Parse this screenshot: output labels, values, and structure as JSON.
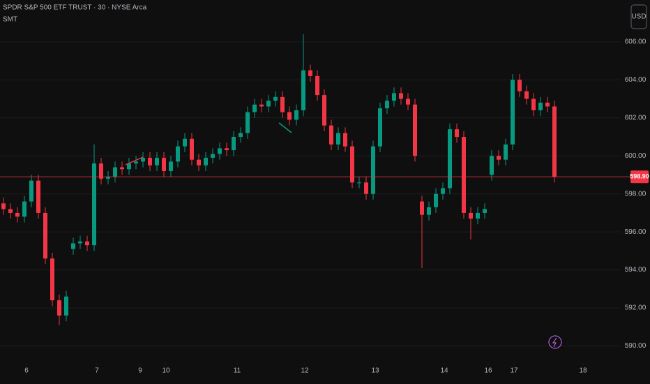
{
  "chart_data": {
    "type": "candlestick",
    "title": "SPDR S&P 500 ETF TRUST · 30 · NYSE Arca",
    "indicator": "SMT",
    "currency": "USD",
    "up_color": "#089981",
    "down_color": "#f23645",
    "grid": true,
    "x": [
      0,
      1,
      2,
      3,
      4,
      5,
      6,
      7,
      8,
      9,
      10,
      11,
      12,
      13,
      14,
      15,
      16,
      17,
      18,
      19,
      20,
      21,
      22,
      23,
      24,
      25,
      26,
      27,
      28,
      29,
      30,
      31,
      32,
      33,
      34,
      35,
      36,
      37,
      38,
      39,
      40,
      41,
      42,
      43,
      44,
      45,
      46,
      47,
      48,
      49,
      50,
      51,
      52,
      53,
      54,
      55,
      56,
      57,
      58,
      59,
      60,
      61,
      62,
      63,
      64,
      65,
      66,
      67,
      68,
      69,
      70,
      71,
      72,
      73,
      74,
      75,
      76,
      77,
      78,
      79
    ],
    "open": [
      597.5,
      597.2,
      597.0,
      596.8,
      597.6,
      598.7,
      597.0,
      594.6,
      592.4,
      591.6,
      595.1,
      595.4,
      595.5,
      595.3,
      599.6,
      598.8,
      598.9,
      599.4,
      599.3,
      599.6,
      599.7,
      599.9,
      599.5,
      599.9,
      599.2,
      599.7,
      600.5,
      600.9,
      599.8,
      599.5,
      599.9,
      600.1,
      600.4,
      600.3,
      601.0,
      601.2,
      602.3,
      602.7,
      602.6,
      602.9,
      603.1,
      602.3,
      601.9,
      602.4,
      604.5,
      604.2,
      603.2,
      601.6,
      600.6,
      601.2,
      600.5,
      598.6,
      598.6,
      598.0,
      600.5,
      602.5,
      602.9,
      603.3,
      603.0,
      602.7,
      597.6,
      596.9,
      597.3,
      598.0,
      598.3,
      601.4,
      601.0,
      597.0,
      596.7,
      597.0,
      599.0,
      600.0,
      599.8,
      600.6,
      604.0,
      603.4,
      603.0,
      602.4,
      602.8,
      602.6
    ],
    "high": [
      597.8,
      597.5,
      597.3,
      597.9,
      599.0,
      599.0,
      597.3,
      594.9,
      592.7,
      592.9,
      595.7,
      595.8,
      595.8,
      600.6,
      599.9,
      599.2,
      599.7,
      599.7,
      599.9,
      600.0,
      600.2,
      600.2,
      600.2,
      600.2,
      600.0,
      600.8,
      601.2,
      601.2,
      600.1,
      600.2,
      600.4,
      600.7,
      600.7,
      601.3,
      601.5,
      602.6,
      603.0,
      603.0,
      603.2,
      603.4,
      603.4,
      602.6,
      602.7,
      606.4,
      604.8,
      604.5,
      603.5,
      601.9,
      601.5,
      601.5,
      600.8,
      598.9,
      598.9,
      600.8,
      602.8,
      603.2,
      603.6,
      603.6,
      603.3,
      603.0,
      597.9,
      597.6,
      598.3,
      598.6,
      601.7,
      601.7,
      601.3,
      597.3,
      597.3,
      597.5,
      600.3,
      600.3,
      600.9,
      604.3,
      604.3,
      603.7,
      603.3,
      603.1,
      603.1,
      602.9
    ],
    "low": [
      596.9,
      596.7,
      596.5,
      596.5,
      597.3,
      596.7,
      594.3,
      592.1,
      591.1,
      591.3,
      594.8,
      595.1,
      595.0,
      595.0,
      598.5,
      598.5,
      598.6,
      599.0,
      599.0,
      599.3,
      599.4,
      599.2,
      599.2,
      598.9,
      598.9,
      599.4,
      600.2,
      599.5,
      599.2,
      599.2,
      599.6,
      599.8,
      600.0,
      600.0,
      600.7,
      600.9,
      602.0,
      602.3,
      602.3,
      602.6,
      602.0,
      601.6,
      601.6,
      602.1,
      603.9,
      602.9,
      601.3,
      600.3,
      600.3,
      600.2,
      598.3,
      598.3,
      597.7,
      597.7,
      600.2,
      602.2,
      602.6,
      602.7,
      602.4,
      599.7,
      594.1,
      596.6,
      597.0,
      597.7,
      598.0,
      600.7,
      596.7,
      595.6,
      596.4,
      596.7,
      598.7,
      599.5,
      599.5,
      600.3,
      603.1,
      602.7,
      602.1,
      602.1,
      602.3,
      598.6
    ],
    "close": [
      597.2,
      597.0,
      596.8,
      597.6,
      598.7,
      597.0,
      594.6,
      592.4,
      591.6,
      592.6,
      595.4,
      595.5,
      595.3,
      599.6,
      598.8,
      598.9,
      599.4,
      599.3,
      599.6,
      599.7,
      599.9,
      599.5,
      599.9,
      599.2,
      599.7,
      600.5,
      600.9,
      599.8,
      599.5,
      599.9,
      600.1,
      600.4,
      600.3,
      601.0,
      601.2,
      602.3,
      602.7,
      602.6,
      602.9,
      603.1,
      602.3,
      601.9,
      602.4,
      604.5,
      604.2,
      603.2,
      601.6,
      600.6,
      601.2,
      600.5,
      598.6,
      598.6,
      598.0,
      600.5,
      602.5,
      602.9,
      603.3,
      603.0,
      602.7,
      600.0,
      596.9,
      597.3,
      598.0,
      598.3,
      601.4,
      601.0,
      597.0,
      596.7,
      597.0,
      597.2,
      600.0,
      599.8,
      600.6,
      604.0,
      603.4,
      603.0,
      602.4,
      602.8,
      602.6,
      598.9
    ],
    "last_price": {
      "value": 598.9,
      "label": "598.90"
    },
    "xlim": [
      -0.5,
      88.5
    ],
    "xticks": [
      {
        "value": 3.3,
        "label": "6"
      },
      {
        "value": 13.4,
        "label": "7"
      },
      {
        "value": 19.6,
        "label": "9"
      },
      {
        "value": 23.3,
        "label": "10"
      },
      {
        "value": 33.5,
        "label": "11"
      },
      {
        "value": 43.2,
        "label": "12"
      },
      {
        "value": 53.3,
        "label": "13"
      },
      {
        "value": 63.2,
        "label": "14"
      },
      {
        "value": 69.5,
        "label": "16"
      },
      {
        "value": 73.2,
        "label": "17"
      },
      {
        "value": 83.1,
        "label": "18"
      }
    ],
    "ylim": [
      589.1,
      608.2
    ],
    "yticks": [
      {
        "value": 590,
        "label": "590.00"
      },
      {
        "value": 592,
        "label": "592.00"
      },
      {
        "value": 594,
        "label": "594.00"
      },
      {
        "value": 596,
        "label": "596.00"
      },
      {
        "value": 598,
        "label": "598.00"
      },
      {
        "value": 600,
        "label": "600.00"
      },
      {
        "value": 602,
        "label": "602.00"
      },
      {
        "value": 604,
        "label": "604.00"
      },
      {
        "value": 606,
        "label": "606.00"
      }
    ]
  }
}
